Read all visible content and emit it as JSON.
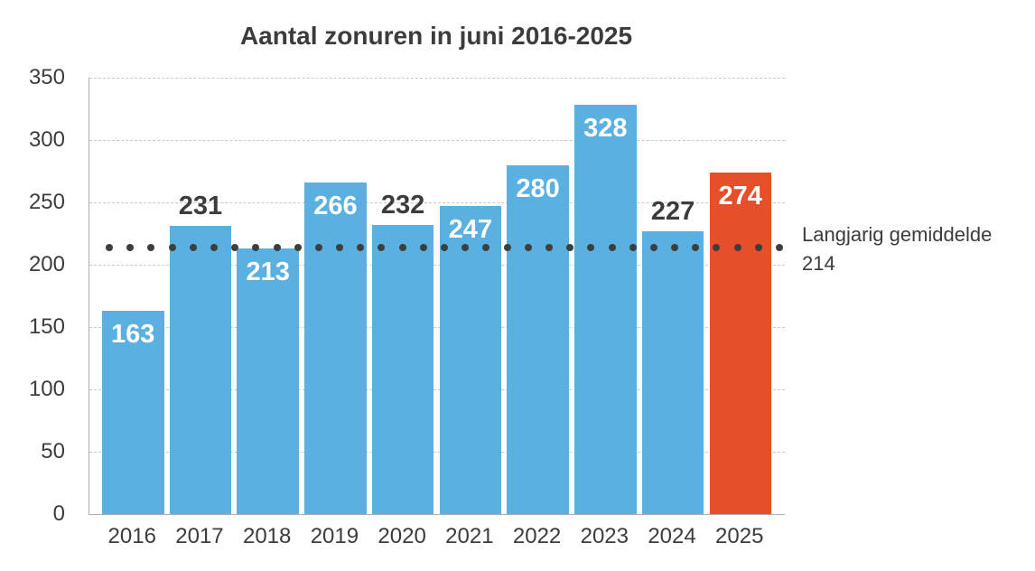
{
  "chart_data": {
    "type": "bar",
    "title": "Aantal zonuren in juni 2016-2025",
    "categories": [
      "2016",
      "2017",
      "2018",
      "2019",
      "2020",
      "2021",
      "2022",
      "2023",
      "2024",
      "2025"
    ],
    "values": [
      163,
      231,
      213,
      266,
      232,
      247,
      280,
      328,
      227,
      274
    ],
    "value_label_positions": [
      "inside",
      "above",
      "inside",
      "inside",
      "above",
      "inside",
      "inside",
      "inside",
      "above",
      "inside"
    ],
    "highlight_index": 9,
    "yticks": [
      0,
      50,
      100,
      150,
      200,
      250,
      300,
      350
    ],
    "ylim": [
      0,
      350
    ],
    "xlabel": "",
    "ylabel": "",
    "grid": "horizontal-dashed",
    "legend": "none",
    "reference_line": {
      "value": 214,
      "style": "dotted",
      "label_line1": "Langjarig gemiddelde",
      "label_line2": "214"
    },
    "colors": {
      "bar_default": "#5bb0e2",
      "bar_highlight": "#e5502b",
      "value_label_inside": "#ffffff",
      "value_label_above": "#3c3c3c",
      "text": "#3c3c3c",
      "gridline": "#c9c9c9",
      "axis": "#aeaeae",
      "reference_dots": "#3e3e3e",
      "background": "#ffffff"
    }
  }
}
